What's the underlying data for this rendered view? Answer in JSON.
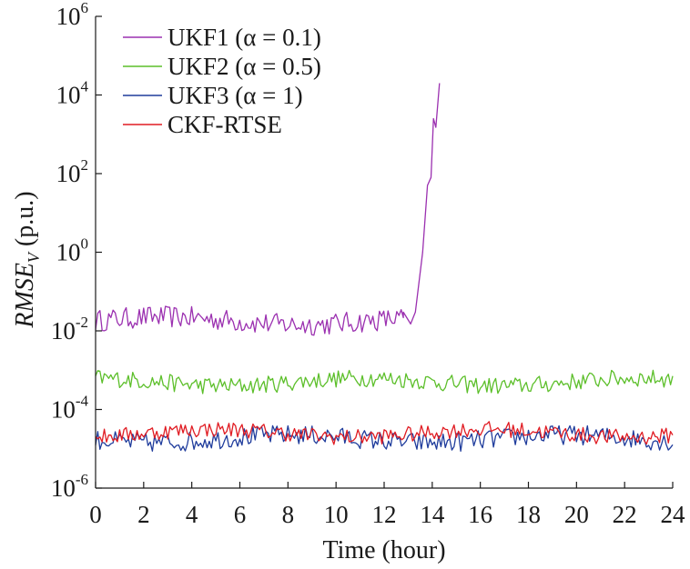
{
  "chart_data": {
    "type": "line",
    "xlabel": "Time (hour)",
    "ylabel": {
      "base": "RMSE",
      "subscript": "V",
      "unit": " (p.u.)"
    },
    "xlim": [
      0,
      24
    ],
    "ylim": [
      1e-06,
      1000000.0
    ],
    "yscale": "log",
    "grid": false,
    "legend_position": "top-left",
    "x_ticks": [
      "0",
      "2",
      "4",
      "6",
      "8",
      "10",
      "12",
      "14",
      "16",
      "18",
      "20",
      "22",
      "24"
    ],
    "y_ticks": [
      {
        "base": "10",
        "exp": "-6",
        "value": 1e-06
      },
      {
        "base": "10",
        "exp": "-4",
        "value": 0.0001
      },
      {
        "base": "10",
        "exp": "-2",
        "value": 0.01
      },
      {
        "base": "10",
        "exp": "0",
        "value": 1
      },
      {
        "base": "10",
        "exp": "2",
        "value": 100.0
      },
      {
        "base": "10",
        "exp": "4",
        "value": 10000.0
      },
      {
        "base": "10",
        "exp": "6",
        "value": 1000000.0
      }
    ],
    "series": [
      {
        "name": "UKF1 (α = 0.1)",
        "color": "#9b30b0",
        "x_range": [
          0,
          14.3
        ],
        "typical": 0.018,
        "noise_decades": 0.28,
        "tail": [
          {
            "x": 12.8,
            "y": 0.03
          },
          {
            "x": 13.1,
            "y": 0.015
          },
          {
            "x": 13.3,
            "y": 0.03
          },
          {
            "x": 13.6,
            "y": 1.0
          },
          {
            "x": 13.8,
            "y": 50
          },
          {
            "x": 13.95,
            "y": 80
          },
          {
            "x": 14.05,
            "y": 2500
          },
          {
            "x": 14.15,
            "y": 1500
          },
          {
            "x": 14.3,
            "y": 20000
          }
        ]
      },
      {
        "name": "UKF2 (α = 0.5)",
        "color": "#5cbf2a",
        "x_range": [
          0,
          24
        ],
        "typical": 0.0005,
        "noise_decades": 0.22
      },
      {
        "name": "UKF3 (α = 1)",
        "color": "#1f3c9c",
        "x_range": [
          0,
          24
        ],
        "typical": 1.8e-05,
        "noise_decades": 0.25
      },
      {
        "name": "CKF-RTSE",
        "color": "#e01b22",
        "x_range": [
          0,
          24
        ],
        "typical": 2.5e-05,
        "noise_decades": 0.2
      }
    ]
  }
}
